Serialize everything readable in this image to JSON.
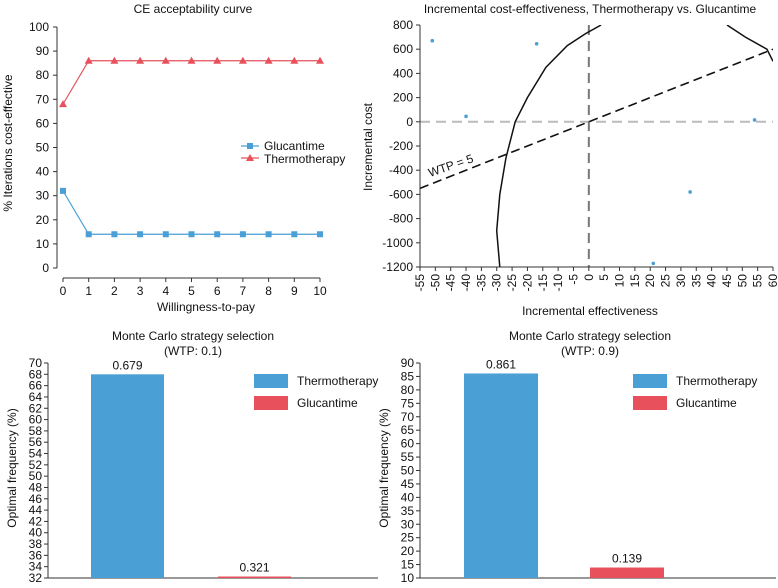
{
  "chart_data": [
    {
      "type": "line",
      "title": "CE acceptability curve",
      "xlabel": "Willingness-to-pay",
      "ylabel": "% Iterations cost-effective",
      "x": [
        0,
        1,
        2,
        3,
        4,
        5,
        6,
        7,
        8,
        9,
        10
      ],
      "xlim": [
        0,
        10
      ],
      "ylim": [
        0,
        100
      ],
      "yticks": [
        0,
        10,
        20,
        30,
        40,
        50,
        60,
        70,
        80,
        90,
        100
      ],
      "series": [
        {
          "name": "Glucantime",
          "marker": "square",
          "color": "#4a9fd5",
          "values": [
            32,
            14,
            14,
            14,
            14,
            14,
            14,
            14,
            14,
            14,
            14
          ]
        },
        {
          "name": "Thermotherapy",
          "marker": "triangle",
          "color": "#e8505b",
          "values": [
            68,
            86,
            86,
            86,
            86,
            86,
            86,
            86,
            86,
            86,
            86
          ]
        }
      ],
      "legend": "center-right"
    },
    {
      "type": "scatter",
      "title": "Incremental cost-effectiveness, Thermotherapy vs. Glucantime",
      "xlabel": "Incremental effectiveness",
      "ylabel": "Incremental cost",
      "xlim": [
        -55,
        60
      ],
      "ylim": [
        -1200,
        800
      ],
      "xticks": [
        -55,
        -50,
        -45,
        -40,
        -35,
        -30,
        -25,
        -20,
        -15,
        -10,
        -5,
        0,
        5,
        10,
        15,
        20,
        25,
        30,
        35,
        40,
        45,
        50,
        55,
        60
      ],
      "yticks": [
        -1200,
        -1000,
        -800,
        -600,
        -400,
        -200,
        0,
        200,
        400,
        600,
        800
      ],
      "points": [
        {
          "x": -51,
          "y": 670
        },
        {
          "x": -40,
          "y": 45
        },
        {
          "x": -17,
          "y": 645
        },
        {
          "x": 21,
          "y": -1170
        },
        {
          "x": 33,
          "y": -580
        },
        {
          "x": 54,
          "y": 15
        }
      ],
      "point_color": "#4a9fd5",
      "wtp_line": {
        "label": "WTP = 5",
        "slope": 10
      },
      "ellipse_left": [
        [
          -29,
          -1200
        ],
        [
          -30,
          -900
        ],
        [
          -29,
          -600
        ],
        [
          -27,
          -300
        ],
        [
          -24,
          0
        ],
        [
          -20,
          200
        ],
        [
          -14,
          450
        ],
        [
          -7,
          630
        ],
        [
          -1,
          730
        ],
        [
          4,
          800
        ]
      ],
      "ellipse_right": [
        [
          45,
          800
        ],
        [
          51,
          700
        ],
        [
          58,
          600
        ],
        [
          60,
          500
        ]
      ]
    },
    {
      "type": "bar",
      "title": "Monte Carlo strategy selection",
      "subtitle": "(WTP: 0.1)",
      "ylabel": "Optimal frequency (%)",
      "categories": [
        "Thermotherapy",
        "Glucantime"
      ],
      "values": [
        68,
        32.1
      ],
      "data_labels": [
        "0.679",
        "0.321"
      ],
      "colors": [
        "#4a9fd5",
        "#e8505b"
      ],
      "ylim": [
        32,
        70
      ],
      "yticks": [
        32,
        34,
        36,
        38,
        40,
        42,
        44,
        46,
        48,
        50,
        52,
        54,
        56,
        58,
        60,
        62,
        64,
        66,
        68,
        70
      ],
      "legend": "top-right"
    },
    {
      "type": "bar",
      "title": "Monte Carlo strategy selection",
      "subtitle": "(WTP: 0.9)",
      "ylabel": "Optimal frequency (%)",
      "categories": [
        "Thermotherapy",
        "Glucantime"
      ],
      "values": [
        86.1,
        13.9
      ],
      "data_labels": [
        "0.861",
        "0.139"
      ],
      "colors": [
        "#4a9fd5",
        "#e8505b"
      ],
      "ylim": [
        10,
        90
      ],
      "yticks": [
        10,
        15,
        20,
        25,
        30,
        35,
        40,
        45,
        50,
        55,
        60,
        65,
        70,
        75,
        80,
        85,
        90
      ],
      "legend": "top-right"
    }
  ]
}
